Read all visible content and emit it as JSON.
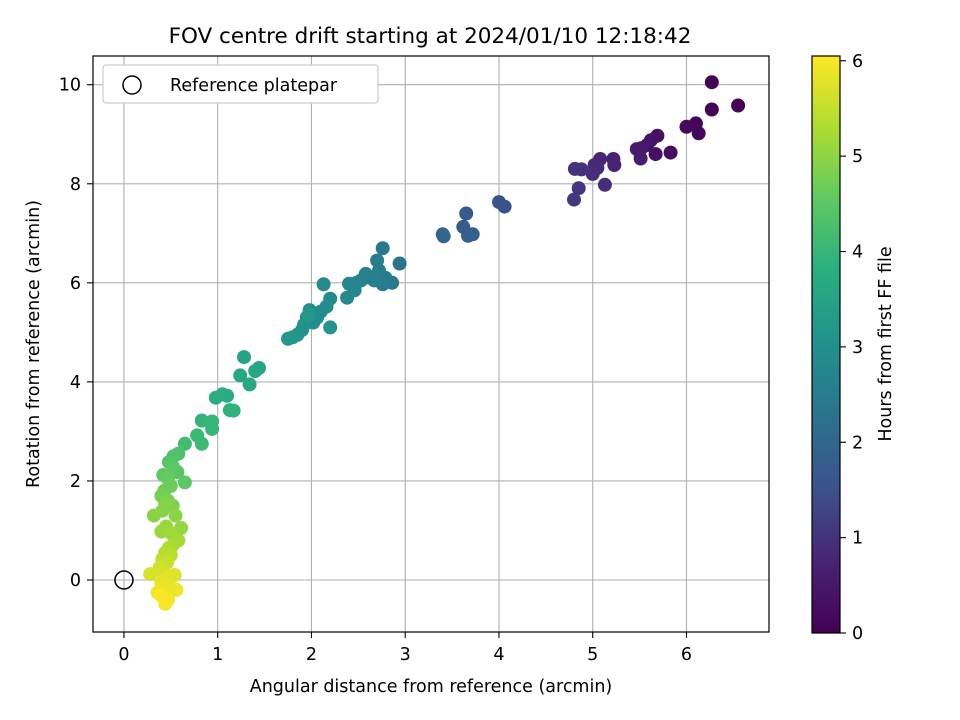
{
  "chart_data": {
    "type": "scatter",
    "title": "FOV centre drift starting at 2024/01/10 12:18:42",
    "xlabel": "Angular distance from reference (arcmin)",
    "ylabel": "Rotation from reference (arcmin)",
    "xlim": [
      -0.33,
      6.88
    ],
    "ylim": [
      -1.05,
      10.58
    ],
    "xticks": [
      0,
      1,
      2,
      3,
      4,
      5,
      6
    ],
    "yticks": [
      0,
      2,
      4,
      6,
      8,
      10
    ],
    "grid": true,
    "legend": {
      "placement": "top-left",
      "entries": [
        "Reference platepar"
      ]
    },
    "reference_point": {
      "label": "Reference platepar",
      "x": 0,
      "y": 0
    },
    "colorbar": {
      "label": "Hours from first FF file",
      "colormap": "viridis",
      "range": [
        0,
        6.05
      ],
      "ticks": [
        0,
        1,
        2,
        3,
        4,
        5,
        6
      ]
    },
    "points": [
      {
        "x": 6.27,
        "y": 10.05,
        "c": 0.02
      },
      {
        "x": 6.55,
        "y": 9.58,
        "c": 0.05
      },
      {
        "x": 6.27,
        "y": 9.5,
        "c": 0.08
      },
      {
        "x": 6.1,
        "y": 9.22,
        "c": 0.12
      },
      {
        "x": 6.0,
        "y": 9.15,
        "c": 0.15
      },
      {
        "x": 6.13,
        "y": 9.02,
        "c": 0.18
      },
      {
        "x": 5.83,
        "y": 8.63,
        "c": 0.25
      },
      {
        "x": 5.69,
        "y": 8.97,
        "c": 0.3
      },
      {
        "x": 5.67,
        "y": 8.6,
        "c": 0.35
      },
      {
        "x": 5.62,
        "y": 8.88,
        "c": 0.4
      },
      {
        "x": 5.58,
        "y": 8.78,
        "c": 0.45
      },
      {
        "x": 5.52,
        "y": 8.72,
        "c": 0.5
      },
      {
        "x": 5.47,
        "y": 8.7,
        "c": 0.55
      },
      {
        "x": 5.51,
        "y": 8.51,
        "c": 0.6
      },
      {
        "x": 5.22,
        "y": 8.5,
        "c": 0.7
      },
      {
        "x": 5.23,
        "y": 8.38,
        "c": 0.72
      },
      {
        "x": 5.08,
        "y": 8.5,
        "c": 0.78
      },
      {
        "x": 5.02,
        "y": 8.38,
        "c": 0.82
      },
      {
        "x": 5.05,
        "y": 8.32,
        "c": 0.85
      },
      {
        "x": 5.0,
        "y": 8.2,
        "c": 0.88
      },
      {
        "x": 5.13,
        "y": 7.98,
        "c": 0.9
      },
      {
        "x": 4.88,
        "y": 8.29,
        "c": 0.95
      },
      {
        "x": 4.81,
        "y": 8.3,
        "c": 1.0
      },
      {
        "x": 4.85,
        "y": 7.91,
        "c": 1.05
      },
      {
        "x": 4.8,
        "y": 7.68,
        "c": 1.1
      },
      {
        "x": 4.06,
        "y": 7.54,
        "c": 1.5
      },
      {
        "x": 4.0,
        "y": 7.63,
        "c": 1.55
      },
      {
        "x": 3.65,
        "y": 7.4,
        "c": 1.7
      },
      {
        "x": 3.62,
        "y": 7.13,
        "c": 1.75
      },
      {
        "x": 3.72,
        "y": 6.98,
        "c": 1.8
      },
      {
        "x": 3.67,
        "y": 6.95,
        "c": 1.85
      },
      {
        "x": 3.41,
        "y": 6.94,
        "c": 2.0
      },
      {
        "x": 3.4,
        "y": 6.98,
        "c": 2.02
      },
      {
        "x": 2.94,
        "y": 6.39,
        "c": 2.3
      },
      {
        "x": 2.76,
        "y": 6.7,
        "c": 2.4
      },
      {
        "x": 2.86,
        "y": 6.0,
        "c": 2.45
      },
      {
        "x": 2.79,
        "y": 6.1,
        "c": 2.5
      },
      {
        "x": 2.76,
        "y": 5.97,
        "c": 2.52
      },
      {
        "x": 2.7,
        "y": 6.45,
        "c": 2.55
      },
      {
        "x": 2.72,
        "y": 6.25,
        "c": 2.58
      },
      {
        "x": 2.67,
        "y": 6.05,
        "c": 2.6
      },
      {
        "x": 2.63,
        "y": 6.1,
        "c": 2.62
      },
      {
        "x": 2.58,
        "y": 6.18,
        "c": 2.65
      },
      {
        "x": 2.53,
        "y": 6.05,
        "c": 2.68
      },
      {
        "x": 2.48,
        "y": 6.0,
        "c": 2.7
      },
      {
        "x": 2.44,
        "y": 5.97,
        "c": 2.72
      },
      {
        "x": 2.4,
        "y": 5.98,
        "c": 2.75
      },
      {
        "x": 2.46,
        "y": 5.85,
        "c": 2.78
      },
      {
        "x": 2.38,
        "y": 5.7,
        "c": 2.8
      },
      {
        "x": 2.13,
        "y": 5.97,
        "c": 2.85
      },
      {
        "x": 2.2,
        "y": 5.68,
        "c": 2.88
      },
      {
        "x": 2.16,
        "y": 5.52,
        "c": 2.9
      },
      {
        "x": 2.1,
        "y": 5.42,
        "c": 2.92
      },
      {
        "x": 2.06,
        "y": 5.3,
        "c": 2.95
      },
      {
        "x": 2.02,
        "y": 5.2,
        "c": 2.97
      },
      {
        "x": 1.98,
        "y": 5.45,
        "c": 3.0
      },
      {
        "x": 1.95,
        "y": 5.3,
        "c": 3.02
      },
      {
        "x": 1.92,
        "y": 5.15,
        "c": 3.05
      },
      {
        "x": 1.9,
        "y": 5.05,
        "c": 3.08
      },
      {
        "x": 2.2,
        "y": 5.1,
        "c": 3.1
      },
      {
        "x": 1.85,
        "y": 4.95,
        "c": 3.12
      },
      {
        "x": 1.8,
        "y": 4.9,
        "c": 3.15
      },
      {
        "x": 1.75,
        "y": 4.87,
        "c": 3.18
      },
      {
        "x": 1.97,
        "y": 5.35,
        "c": 3.2
      },
      {
        "x": 1.28,
        "y": 4.5,
        "c": 3.5
      },
      {
        "x": 1.44,
        "y": 4.28,
        "c": 3.55
      },
      {
        "x": 1.4,
        "y": 4.22,
        "c": 3.58
      },
      {
        "x": 1.24,
        "y": 4.13,
        "c": 3.62
      },
      {
        "x": 1.34,
        "y": 3.95,
        "c": 3.65
      },
      {
        "x": 1.1,
        "y": 3.72,
        "c": 3.75
      },
      {
        "x": 0.98,
        "y": 3.68,
        "c": 3.78
      },
      {
        "x": 1.05,
        "y": 3.75,
        "c": 3.8
      },
      {
        "x": 1.13,
        "y": 3.43,
        "c": 3.85
      },
      {
        "x": 1.17,
        "y": 3.42,
        "c": 3.88
      },
      {
        "x": 0.83,
        "y": 3.22,
        "c": 3.95
      },
      {
        "x": 0.94,
        "y": 3.2,
        "c": 3.98
      },
      {
        "x": 0.94,
        "y": 3.05,
        "c": 4.0
      },
      {
        "x": 0.78,
        "y": 2.92,
        "c": 4.05
      },
      {
        "x": 0.83,
        "y": 2.75,
        "c": 4.1
      },
      {
        "x": 0.65,
        "y": 2.75,
        "c": 4.15
      },
      {
        "x": 0.58,
        "y": 2.55,
        "c": 4.3
      },
      {
        "x": 0.53,
        "y": 2.5,
        "c": 4.35
      },
      {
        "x": 0.48,
        "y": 2.38,
        "c": 4.4
      },
      {
        "x": 0.57,
        "y": 2.18,
        "c": 4.45
      },
      {
        "x": 0.52,
        "y": 2.3,
        "c": 4.48
      },
      {
        "x": 0.42,
        "y": 2.12,
        "c": 4.55
      },
      {
        "x": 0.47,
        "y": 2.05,
        "c": 4.6
      },
      {
        "x": 0.65,
        "y": 1.97,
        "c": 4.5
      },
      {
        "x": 0.5,
        "y": 1.9,
        "c": 4.65
      },
      {
        "x": 0.43,
        "y": 1.8,
        "c": 4.7
      },
      {
        "x": 0.4,
        "y": 1.7,
        "c": 4.75
      },
      {
        "x": 0.47,
        "y": 1.6,
        "c": 4.8
      },
      {
        "x": 0.52,
        "y": 1.5,
        "c": 4.85
      },
      {
        "x": 0.44,
        "y": 1.55,
        "c": 4.88
      },
      {
        "x": 0.41,
        "y": 1.4,
        "c": 4.92
      },
      {
        "x": 0.32,
        "y": 1.3,
        "c": 4.95
      },
      {
        "x": 0.55,
        "y": 1.3,
        "c": 4.98
      },
      {
        "x": 0.61,
        "y": 1.05,
        "c": 5.05
      },
      {
        "x": 0.45,
        "y": 1.08,
        "c": 5.08
      },
      {
        "x": 0.4,
        "y": 0.98,
        "c": 5.1
      },
      {
        "x": 0.5,
        "y": 0.95,
        "c": 5.15
      },
      {
        "x": 0.58,
        "y": 0.8,
        "c": 5.2
      },
      {
        "x": 0.52,
        "y": 0.7,
        "c": 5.25
      },
      {
        "x": 0.48,
        "y": 0.65,
        "c": 5.3
      },
      {
        "x": 0.44,
        "y": 0.55,
        "c": 5.35
      },
      {
        "x": 0.5,
        "y": 0.5,
        "c": 5.4
      },
      {
        "x": 0.41,
        "y": 0.42,
        "c": 5.45
      },
      {
        "x": 0.46,
        "y": 0.35,
        "c": 5.55
      },
      {
        "x": 0.38,
        "y": 0.25,
        "c": 5.6
      },
      {
        "x": 0.42,
        "y": 0.15,
        "c": 5.65
      },
      {
        "x": 0.28,
        "y": 0.12,
        "c": 5.7
      },
      {
        "x": 0.54,
        "y": 0.1,
        "c": 5.75
      },
      {
        "x": 0.45,
        "y": 0.05,
        "c": 5.78
      },
      {
        "x": 0.4,
        "y": -0.05,
        "c": 5.82
      },
      {
        "x": 0.48,
        "y": -0.1,
        "c": 5.85
      },
      {
        "x": 0.43,
        "y": -0.18,
        "c": 5.88
      },
      {
        "x": 0.56,
        "y": -0.2,
        "c": 5.9
      },
      {
        "x": 0.36,
        "y": -0.25,
        "c": 5.92
      },
      {
        "x": 0.42,
        "y": -0.35,
        "c": 5.95
      },
      {
        "x": 0.47,
        "y": -0.4,
        "c": 5.98
      },
      {
        "x": 0.44,
        "y": -0.48,
        "c": 6.0
      },
      {
        "x": 0.39,
        "y": -0.3,
        "c": 6.02
      }
    ]
  }
}
